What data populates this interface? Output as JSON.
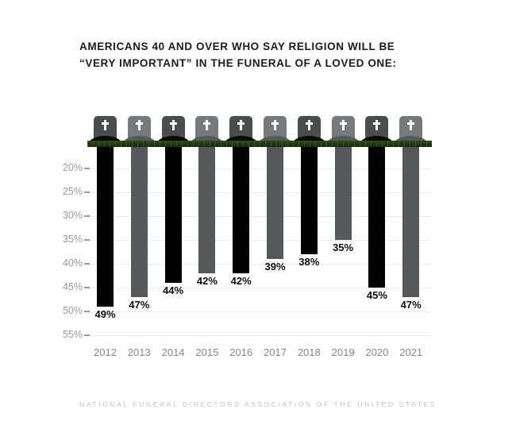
{
  "title": {
    "line1": "AMERICANS 40 AND OVER WHO SAY RELIGION WILL BE",
    "line2": "“VERY IMPORTANT” IN THE FUNERAL OF A LOVED ONE:"
  },
  "footer": {
    "text": "NATIONAL FUNERAL DIRECTORS ASSOCIATION OF THE UNITED STATES"
  },
  "chart_data": {
    "type": "bar",
    "orientation": "vertical-hanging-inverted",
    "title": "AMERICANS 40 AND OVER WHO SAY RELIGION WILL BE “VERY IMPORTANT” IN THE FUNERAL OF A LOVED ONE:",
    "categories": [
      "2012",
      "2013",
      "2014",
      "2015",
      "2016",
      "2017",
      "2018",
      "2019",
      "2020",
      "2021"
    ],
    "values": [
      49,
      47,
      44,
      42,
      42,
      39,
      38,
      35,
      45,
      47
    ],
    "value_labels": [
      "49%",
      "47%",
      "44%",
      "42%",
      "42%",
      "39%",
      "38%",
      "35%",
      "45%",
      "47%"
    ],
    "y_ticks": [
      20,
      25,
      30,
      35,
      40,
      45,
      50,
      55
    ],
    "y_tick_labels": [
      "20%",
      "25%",
      "30%",
      "35%",
      "40%",
      "45%",
      "50%",
      "55%"
    ],
    "y_axis_inverted": true,
    "y_value_at_ground": 15,
    "ylim": [
      15,
      55
    ],
    "grid": true,
    "legend": false,
    "xlabel": "",
    "ylabel": "",
    "source": "NATIONAL FUNERAL DIRECTORS ASSOCIATION OF THE UNITED STATES",
    "decoration": "each bar hangs below ground like a grave, topped by a tombstone with a white cross on a grass strip"
  },
  "colors": {
    "background": "#ffffff",
    "bar_black": "#020202",
    "bar_gray": "#56585b",
    "headstone_dark": "#4b4c4e",
    "headstone_light": "#78797c",
    "mound_black": "#0a0a0a",
    "mound_gray": "#56585b",
    "grass_dark": "#16220c",
    "grass_light": "#2c4418",
    "cross": "#ffffff",
    "gridline": "#e8e9ea",
    "tick_label": "#97999c",
    "year_label": "#85878a",
    "value_label": "#0d0d0d",
    "title_text": "#1c1c1c",
    "footer_text": "#c2c3c5"
  }
}
